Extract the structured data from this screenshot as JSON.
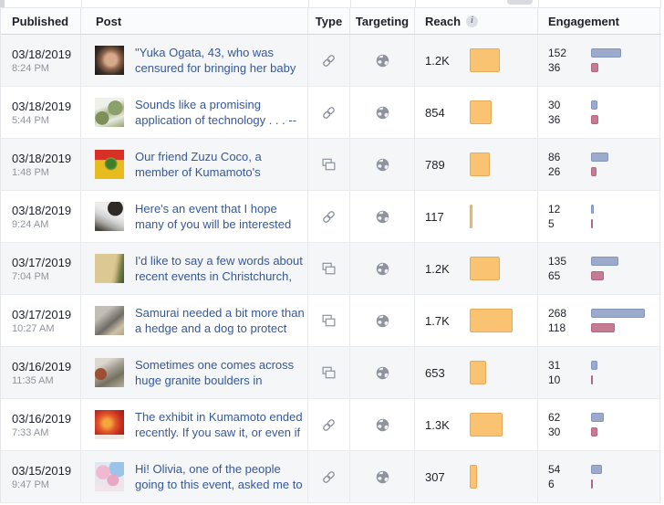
{
  "header": {
    "published": "Published",
    "post": "Post",
    "type": "Type",
    "targeting": "Targeting",
    "reach": "Reach",
    "reach_info": "i",
    "engagement": "Engagement"
  },
  "colors": {
    "reach_bar": "#f9c372",
    "engagement_primary_bar": "#9cabcc",
    "engagement_secondary_bar": "#c57c93",
    "post_link_text": "#365899"
  },
  "bar_scale": {
    "reach": 0.02765,
    "engagement": 0.22
  },
  "rows": [
    {
      "date": "03/18/2019",
      "time": "8:24 PM",
      "post_text": "\"Yuka Ogata, 43, who was censured for bringing her baby to",
      "thumb": "woman-face",
      "type": "link",
      "targeting": "public",
      "reach": {
        "label": "1.2K",
        "value": 1200
      },
      "engagement": {
        "primary": {
          "label": "152",
          "value": 152
        },
        "secondary": {
          "label": "36",
          "value": 36
        }
      }
    },
    {
      "date": "03/18/2019",
      "time": "5:44 PM",
      "post_text": "Sounds like a promising application of technology . . . --",
      "thumb": "foliage",
      "type": "link",
      "targeting": "public",
      "reach": {
        "label": "854",
        "value": 854
      },
      "engagement": {
        "primary": {
          "label": "30",
          "value": 30
        },
        "secondary": {
          "label": "36",
          "value": 36
        }
      }
    },
    {
      "date": "03/18/2019",
      "time": "1:48 PM",
      "post_text": "Our friend Zuzu Coco, a member of Kumamoto's Hispanic",
      "thumb": "flag-cartoon",
      "type": "photos",
      "targeting": "public",
      "reach": {
        "label": "789",
        "value": 789
      },
      "engagement": {
        "primary": {
          "label": "86",
          "value": 86
        },
        "secondary": {
          "label": "26",
          "value": 26
        }
      }
    },
    {
      "date": "03/18/2019",
      "time": "9:24 AM",
      "post_text": "Here's an event that I hope many of you will be interested in. -- Kirk",
      "thumb": "person-photo",
      "type": "link",
      "targeting": "public",
      "reach": {
        "label": "117",
        "value": 117
      },
      "engagement": {
        "primary": {
          "label": "12",
          "value": 12
        },
        "secondary": {
          "label": "5",
          "value": 5
        }
      }
    },
    {
      "date": "03/17/2019",
      "time": "7:04 PM",
      "post_text": "I'd like to say a few words about recent events in Christchurch, New",
      "thumb": "plaque",
      "type": "photos",
      "targeting": "public",
      "reach": {
        "label": "1.2K",
        "value": 1200
      },
      "engagement": {
        "primary": {
          "label": "135",
          "value": 135
        },
        "secondary": {
          "label": "65",
          "value": 65
        }
      }
    },
    {
      "date": "03/17/2019",
      "time": "10:27 AM",
      "post_text": "Samurai needed a bit more than a hedge and a dog to protect their",
      "thumb": "stone-wall",
      "type": "photos",
      "targeting": "public",
      "reach": {
        "label": "1.7K",
        "value": 1700
      },
      "engagement": {
        "primary": {
          "label": "268",
          "value": 268
        },
        "secondary": {
          "label": "118",
          "value": 118
        }
      }
    },
    {
      "date": "03/16/2019",
      "time": "11:35 AM",
      "post_text": "Sometimes one comes across huge granite boulders in",
      "thumb": "boulder",
      "type": "photos",
      "targeting": "public",
      "reach": {
        "label": "653",
        "value": 653
      },
      "engagement": {
        "primary": {
          "label": "31",
          "value": 31
        },
        "secondary": {
          "label": "10",
          "value": 10
        }
      }
    },
    {
      "date": "03/16/2019",
      "time": "7:33 AM",
      "post_text": "The exhibit in Kumamoto ended recently. If you saw it, or even if",
      "thumb": "red-artwork",
      "type": "link",
      "targeting": "public",
      "reach": {
        "label": "1.3K",
        "value": 1300
      },
      "engagement": {
        "primary": {
          "label": "62",
          "value": 62
        },
        "secondary": {
          "label": "30",
          "value": 30
        }
      }
    },
    {
      "date": "03/15/2019",
      "time": "9:47 PM",
      "post_text": "Hi! Olivia, one of the people going to this event, asked me to share it.",
      "thumb": "cherry-blossoms",
      "type": "link",
      "targeting": "public",
      "reach": {
        "label": "307",
        "value": 307
      },
      "engagement": {
        "primary": {
          "label": "54",
          "value": 54
        },
        "secondary": {
          "label": "6",
          "value": 6
        }
      }
    }
  ]
}
